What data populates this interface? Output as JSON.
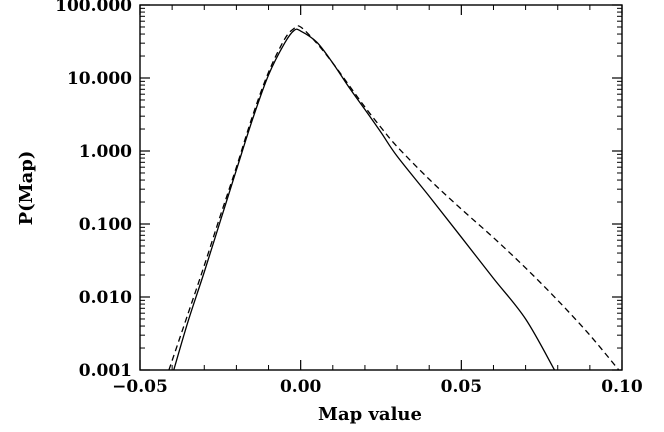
{
  "chart_data": {
    "type": "line",
    "title": "",
    "xlabel": "Map value",
    "ylabel": "P(Map)",
    "xlim": [
      -0.05,
      0.1
    ],
    "ylim": [
      0.001,
      100
    ],
    "y_scale": "log",
    "grid": false,
    "legend": "none",
    "x_tick_values": [
      -0.05,
      0.0,
      0.05,
      0.1
    ],
    "x_tick_labels": [
      "−0.05",
      "0.00",
      "0.05",
      "0.10"
    ],
    "y_tick_values": [
      0.001,
      0.01,
      0.1,
      1,
      10,
      100
    ],
    "y_tick_labels": [
      "0.001",
      "0.010",
      "0.100",
      "1.000",
      "10.000",
      "100.000"
    ],
    "series": [
      {
        "style": "solid",
        "color": "#000000",
        "x": [
          -0.0395,
          -0.035,
          -0.03,
          -0.025,
          -0.02,
          -0.015,
          -0.01,
          -0.005,
          -0.002,
          0.0,
          0.005,
          0.01,
          0.015,
          0.02,
          0.025,
          0.03,
          0.04,
          0.05,
          0.06,
          0.07,
          0.079
        ],
        "y": [
          0.001,
          0.0047,
          0.022,
          0.11,
          0.55,
          2.7,
          11,
          30,
          45,
          44,
          31,
          16,
          7.5,
          3.7,
          1.8,
          0.85,
          0.24,
          0.066,
          0.018,
          0.005,
          0.001
        ]
      },
      {
        "style": "dashed",
        "color": "#000000",
        "x": [
          -0.041,
          -0.035,
          -0.03,
          -0.025,
          -0.02,
          -0.015,
          -0.01,
          -0.005,
          -0.002,
          0.0,
          0.005,
          0.01,
          0.015,
          0.02,
          0.025,
          0.03,
          0.04,
          0.05,
          0.06,
          0.07,
          0.08,
          0.09,
          0.099
        ],
        "y": [
          0.001,
          0.006,
          0.027,
          0.13,
          0.6,
          3.0,
          12,
          34,
          48,
          50,
          30,
          16,
          8.0,
          4.0,
          2.1,
          1.15,
          0.41,
          0.16,
          0.065,
          0.025,
          0.009,
          0.003,
          0.001
        ]
      }
    ]
  }
}
